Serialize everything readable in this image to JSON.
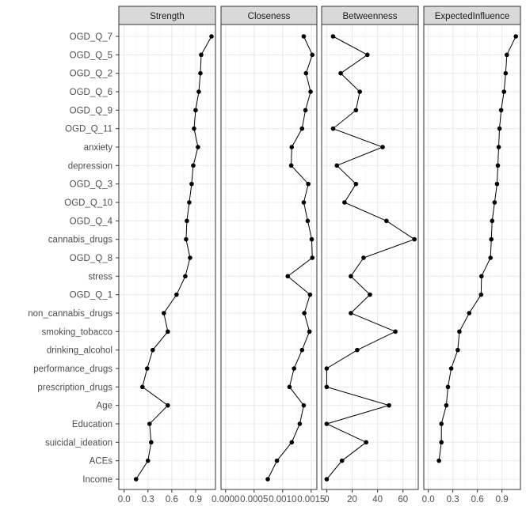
{
  "chart_data": {
    "type": "line",
    "title": "",
    "categories": [
      "OGD_Q_7",
      "OGD_Q_5",
      "OGD_Q_2",
      "OGD_Q_6",
      "OGD_Q_9",
      "OGD_Q_11",
      "anxiety",
      "depression",
      "OGD_Q_3",
      "OGD_Q_10",
      "OGD_Q_4",
      "cannabis_drugs",
      "OGD_Q_8",
      "stress",
      "OGD_Q_1",
      "non_cannabis_drugs",
      "smoking_tobacco",
      "drinking_alcohol",
      "performance_drugs",
      "prescription_drugs",
      "Age",
      "Education",
      "suicidal_ideation",
      "ACEs",
      "Income"
    ],
    "grid": true,
    "panels": [
      {
        "name": "Strength",
        "xlim": [
          -0.067,
          1.15
        ],
        "ticks": [
          0.0,
          0.3,
          0.6,
          0.9
        ],
        "tick_labels": [
          "0.0",
          "0.3",
          "0.6",
          "0.9"
        ],
        "values": [
          1.1,
          0.97,
          0.96,
          0.94,
          0.9,
          0.88,
          0.93,
          0.87,
          0.85,
          0.82,
          0.79,
          0.78,
          0.83,
          0.77,
          0.66,
          0.5,
          0.55,
          0.36,
          0.29,
          0.23,
          0.55,
          0.32,
          0.34,
          0.3,
          0.15
        ]
      },
      {
        "name": "Closeness",
        "xlim": [
          -8e-05,
          0.0016
        ],
        "ticks": [
          0,
          0.0005,
          0.001,
          0.0015
        ],
        "tick_labels": [
          "0.0000",
          "0.0005",
          "0.0010",
          "0.0015"
        ],
        "values": [
          0.00137,
          0.00152,
          0.00141,
          0.00149,
          0.0014,
          0.00134,
          0.00116,
          0.00115,
          0.00145,
          0.00137,
          0.00144,
          0.00151,
          0.00152,
          0.00109,
          0.00148,
          0.00138,
          0.00147,
          0.00134,
          0.0012,
          0.00112,
          0.00137,
          0.0013,
          0.00116,
          0.0009,
          0.00074
        ]
      },
      {
        "name": "Betweenness",
        "xlim": [
          -4,
          72
        ],
        "ticks": [
          0,
          20,
          40,
          60
        ],
        "tick_labels": [
          "0",
          "20",
          "40",
          "60"
        ],
        "values": [
          5,
          32,
          11,
          26,
          23,
          5,
          44,
          8,
          23,
          14,
          47,
          69,
          29,
          19,
          34,
          19,
          54,
          24,
          0,
          0,
          49,
          0,
          31,
          12,
          0
        ]
      },
      {
        "name": "ExpectedInfluence",
        "xlim": [
          -0.055,
          1.126
        ],
        "ticks": [
          0.0,
          0.3,
          0.6,
          0.9
        ],
        "tick_labels": [
          "0.0",
          "0.3",
          "0.6",
          "0.9"
        ],
        "values": [
          1.07,
          0.96,
          0.945,
          0.925,
          0.89,
          0.87,
          0.86,
          0.85,
          0.84,
          0.81,
          0.78,
          0.77,
          0.76,
          0.65,
          0.645,
          0.5,
          0.38,
          0.36,
          0.28,
          0.24,
          0.22,
          0.16,
          0.16,
          0.13,
          null
        ]
      }
    ]
  }
}
